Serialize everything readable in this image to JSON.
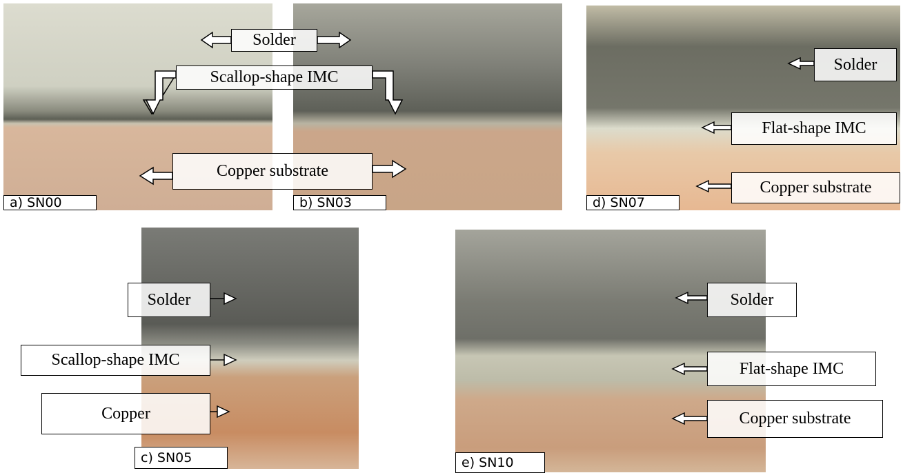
{
  "panels": [
    {
      "caption": "a) SN00"
    },
    {
      "caption": "b) SN03"
    },
    {
      "caption": "d) SN07"
    },
    {
      "caption": "c) SN05"
    },
    {
      "caption": "e)  SN10"
    }
  ],
  "annotations": [
    {
      "text": "Solder"
    },
    {
      "text": "Scallop-shape IMC"
    },
    {
      "text": "Copper substrate"
    },
    {
      "text": "Solder"
    },
    {
      "text": "Flat-shape IMC"
    },
    {
      "text": "Copper substrate"
    },
    {
      "text": "Solder"
    },
    {
      "text": "Scallop-shape IMC"
    },
    {
      "text": "Copper"
    },
    {
      "text": "Solder"
    },
    {
      "text": "Flat-shape IMC"
    },
    {
      "text": "Copper substrate"
    }
  ]
}
